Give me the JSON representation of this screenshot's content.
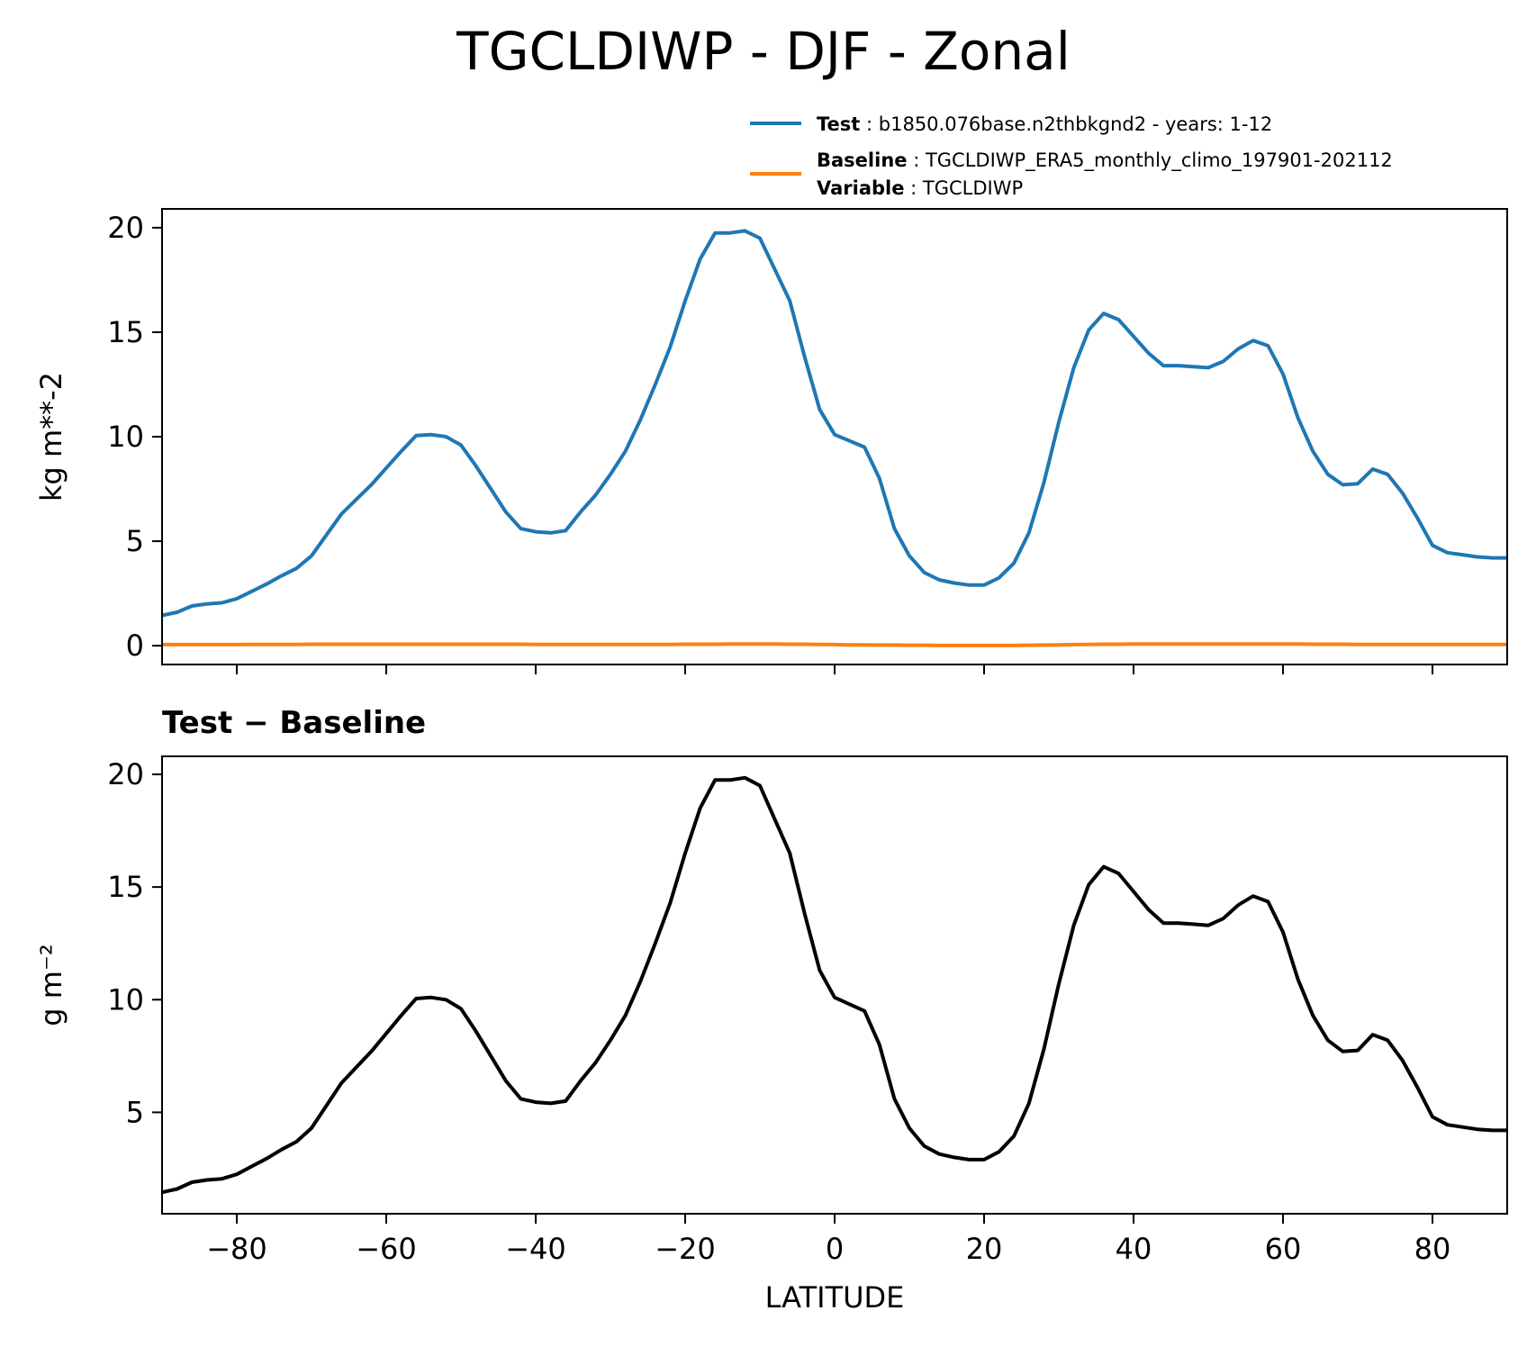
{
  "title": "TGCLDIWP - DJF - Zonal",
  "legend": {
    "test_key": "Test",
    "test_value": "b1850.076base.n2thbkgnd2 - years: 1-12",
    "baseline_key": "Baseline",
    "baseline_value": "TGCLDIWP_ERA5_monthly_climo_197901-202112",
    "variable_key": "Variable",
    "variable_value": "TGCLDIWP",
    "colors": {
      "test": "#1f77b4",
      "baseline": "#ff7f0e"
    }
  },
  "chart_data": [
    {
      "type": "line",
      "panel": "top",
      "title": "",
      "xlabel": "",
      "ylabel": "kg m**-2",
      "xlim": [
        -90,
        90
      ],
      "ylim": [
        -0.9,
        20.9
      ],
      "yticks": [
        0,
        5,
        10,
        15,
        20
      ],
      "xticks": [
        -80,
        -60,
        -40,
        -20,
        0,
        20,
        40,
        60,
        80
      ],
      "show_x_tick_labels": false,
      "grid": false,
      "legend_placement": "above-right",
      "x": [
        -90,
        -88,
        -86,
        -84,
        -82,
        -80,
        -78,
        -76,
        -74,
        -72,
        -70,
        -68,
        -66,
        -64,
        -62,
        -60,
        -58,
        -56,
        -54,
        -52,
        -50,
        -48,
        -46,
        -44,
        -42,
        -40,
        -38,
        -36,
        -34,
        -32,
        -30,
        -28,
        -26,
        -24,
        -22,
        -20,
        -18,
        -16,
        -14,
        -12,
        -10,
        -8,
        -6,
        -4,
        -2,
        0,
        2,
        4,
        6,
        8,
        10,
        12,
        14,
        16,
        18,
        20,
        22,
        24,
        26,
        28,
        30,
        32,
        34,
        36,
        38,
        40,
        42,
        44,
        46,
        48,
        50,
        52,
        54,
        56,
        58,
        60,
        62,
        64,
        66,
        68,
        70,
        72,
        74,
        76,
        78,
        80,
        82,
        84,
        86,
        88,
        90
      ],
      "series": [
        {
          "name": "Test",
          "color": "#1f77b4",
          "values": [
            1.45,
            1.6,
            1.9,
            2.0,
            2.05,
            2.25,
            2.6,
            2.95,
            3.35,
            3.7,
            4.3,
            5.3,
            6.3,
            7.0,
            7.7,
            8.5,
            9.3,
            10.05,
            10.1,
            10.0,
            9.6,
            8.6,
            7.5,
            6.4,
            5.6,
            5.45,
            5.4,
            5.5,
            6.4,
            7.2,
            8.2,
            9.3,
            10.8,
            12.5,
            14.3,
            16.5,
            18.5,
            19.75,
            19.75,
            19.85,
            19.5,
            18.0,
            16.5,
            13.8,
            11.3,
            10.1,
            9.8,
            9.5,
            8.0,
            5.6,
            4.3,
            3.5,
            3.15,
            3.0,
            2.9,
            2.9,
            3.25,
            3.95,
            5.4,
            7.8,
            10.7,
            13.3,
            15.1,
            15.9,
            15.6,
            14.8,
            14.0,
            13.4,
            13.4,
            13.35,
            13.3,
            13.6,
            14.2,
            14.6,
            14.35,
            13.0,
            10.9,
            9.3,
            8.2,
            7.7,
            7.75,
            8.45,
            8.2,
            7.3,
            6.1,
            4.8,
            4.45,
            4.35,
            4.25,
            4.2,
            4.2
          ]
        },
        {
          "name": "Baseline",
          "color": "#ff7f0e",
          "values": [
            0.05,
            0.05,
            0.05,
            0.05,
            0.05,
            0.05,
            0.06,
            0.06,
            0.06,
            0.06,
            0.07,
            0.07,
            0.07,
            0.07,
            0.07,
            0.07,
            0.07,
            0.07,
            0.07,
            0.07,
            0.07,
            0.07,
            0.07,
            0.07,
            0.07,
            0.06,
            0.06,
            0.06,
            0.06,
            0.06,
            0.06,
            0.06,
            0.06,
            0.06,
            0.06,
            0.07,
            0.07,
            0.07,
            0.08,
            0.08,
            0.08,
            0.08,
            0.07,
            0.07,
            0.06,
            0.05,
            0.04,
            0.04,
            0.03,
            0.03,
            0.02,
            0.02,
            0.01,
            0.01,
            0.01,
            0.01,
            0.01,
            0.01,
            0.02,
            0.03,
            0.04,
            0.05,
            0.06,
            0.07,
            0.07,
            0.08,
            0.08,
            0.08,
            0.08,
            0.08,
            0.08,
            0.08,
            0.08,
            0.08,
            0.08,
            0.08,
            0.08,
            0.07,
            0.07,
            0.07,
            0.06,
            0.06,
            0.06,
            0.06,
            0.06,
            0.06,
            0.06,
            0.06,
            0.06,
            0.06,
            0.06
          ]
        }
      ]
    },
    {
      "type": "line",
      "panel": "bottom",
      "title": "Test − Baseline",
      "xlabel": "LATITUDE",
      "ylabel": "g m⁻²",
      "xlim": [
        -90,
        90
      ],
      "ylim": [
        0.5,
        20.8
      ],
      "yticks": [
        5,
        10,
        15,
        20
      ],
      "xticks": [
        -80,
        -60,
        -40,
        -20,
        0,
        20,
        40,
        60,
        80
      ],
      "xtick_labels": [
        "−80",
        "−60",
        "−40",
        "−20",
        "0",
        "20",
        "40",
        "60",
        "80"
      ],
      "show_x_tick_labels": true,
      "grid": false,
      "x": [
        -90,
        -88,
        -86,
        -84,
        -82,
        -80,
        -78,
        -76,
        -74,
        -72,
        -70,
        -68,
        -66,
        -64,
        -62,
        -60,
        -58,
        -56,
        -54,
        -52,
        -50,
        -48,
        -46,
        -44,
        -42,
        -40,
        -38,
        -36,
        -34,
        -32,
        -30,
        -28,
        -26,
        -24,
        -22,
        -20,
        -18,
        -16,
        -14,
        -12,
        -10,
        -8,
        -6,
        -4,
        -2,
        0,
        2,
        4,
        6,
        8,
        10,
        12,
        14,
        16,
        18,
        20,
        22,
        24,
        26,
        28,
        30,
        32,
        34,
        36,
        38,
        40,
        42,
        44,
        46,
        48,
        50,
        52,
        54,
        56,
        58,
        60,
        62,
        64,
        66,
        68,
        70,
        72,
        74,
        76,
        78,
        80,
        82,
        84,
        86,
        88,
        90
      ],
      "series": [
        {
          "name": "",
          "color": "#000000",
          "values": [
            1.45,
            1.6,
            1.9,
            2.0,
            2.05,
            2.25,
            2.6,
            2.95,
            3.35,
            3.7,
            4.3,
            5.3,
            6.3,
            7.0,
            7.7,
            8.5,
            9.3,
            10.05,
            10.1,
            10.0,
            9.6,
            8.6,
            7.5,
            6.4,
            5.6,
            5.45,
            5.4,
            5.5,
            6.4,
            7.2,
            8.2,
            9.3,
            10.8,
            12.5,
            14.3,
            16.5,
            18.5,
            19.75,
            19.75,
            19.85,
            19.5,
            18.0,
            16.5,
            13.8,
            11.3,
            10.1,
            9.8,
            9.5,
            8.0,
            5.6,
            4.3,
            3.5,
            3.15,
            3.0,
            2.9,
            2.9,
            3.25,
            3.95,
            5.4,
            7.8,
            10.7,
            13.3,
            15.1,
            15.9,
            15.6,
            14.8,
            14.0,
            13.4,
            13.4,
            13.35,
            13.3,
            13.6,
            14.2,
            14.6,
            14.35,
            13.0,
            10.9,
            9.3,
            8.2,
            7.7,
            7.75,
            8.45,
            8.2,
            7.3,
            6.1,
            4.8,
            4.45,
            4.35,
            4.25,
            4.2,
            4.2
          ]
        }
      ]
    }
  ]
}
